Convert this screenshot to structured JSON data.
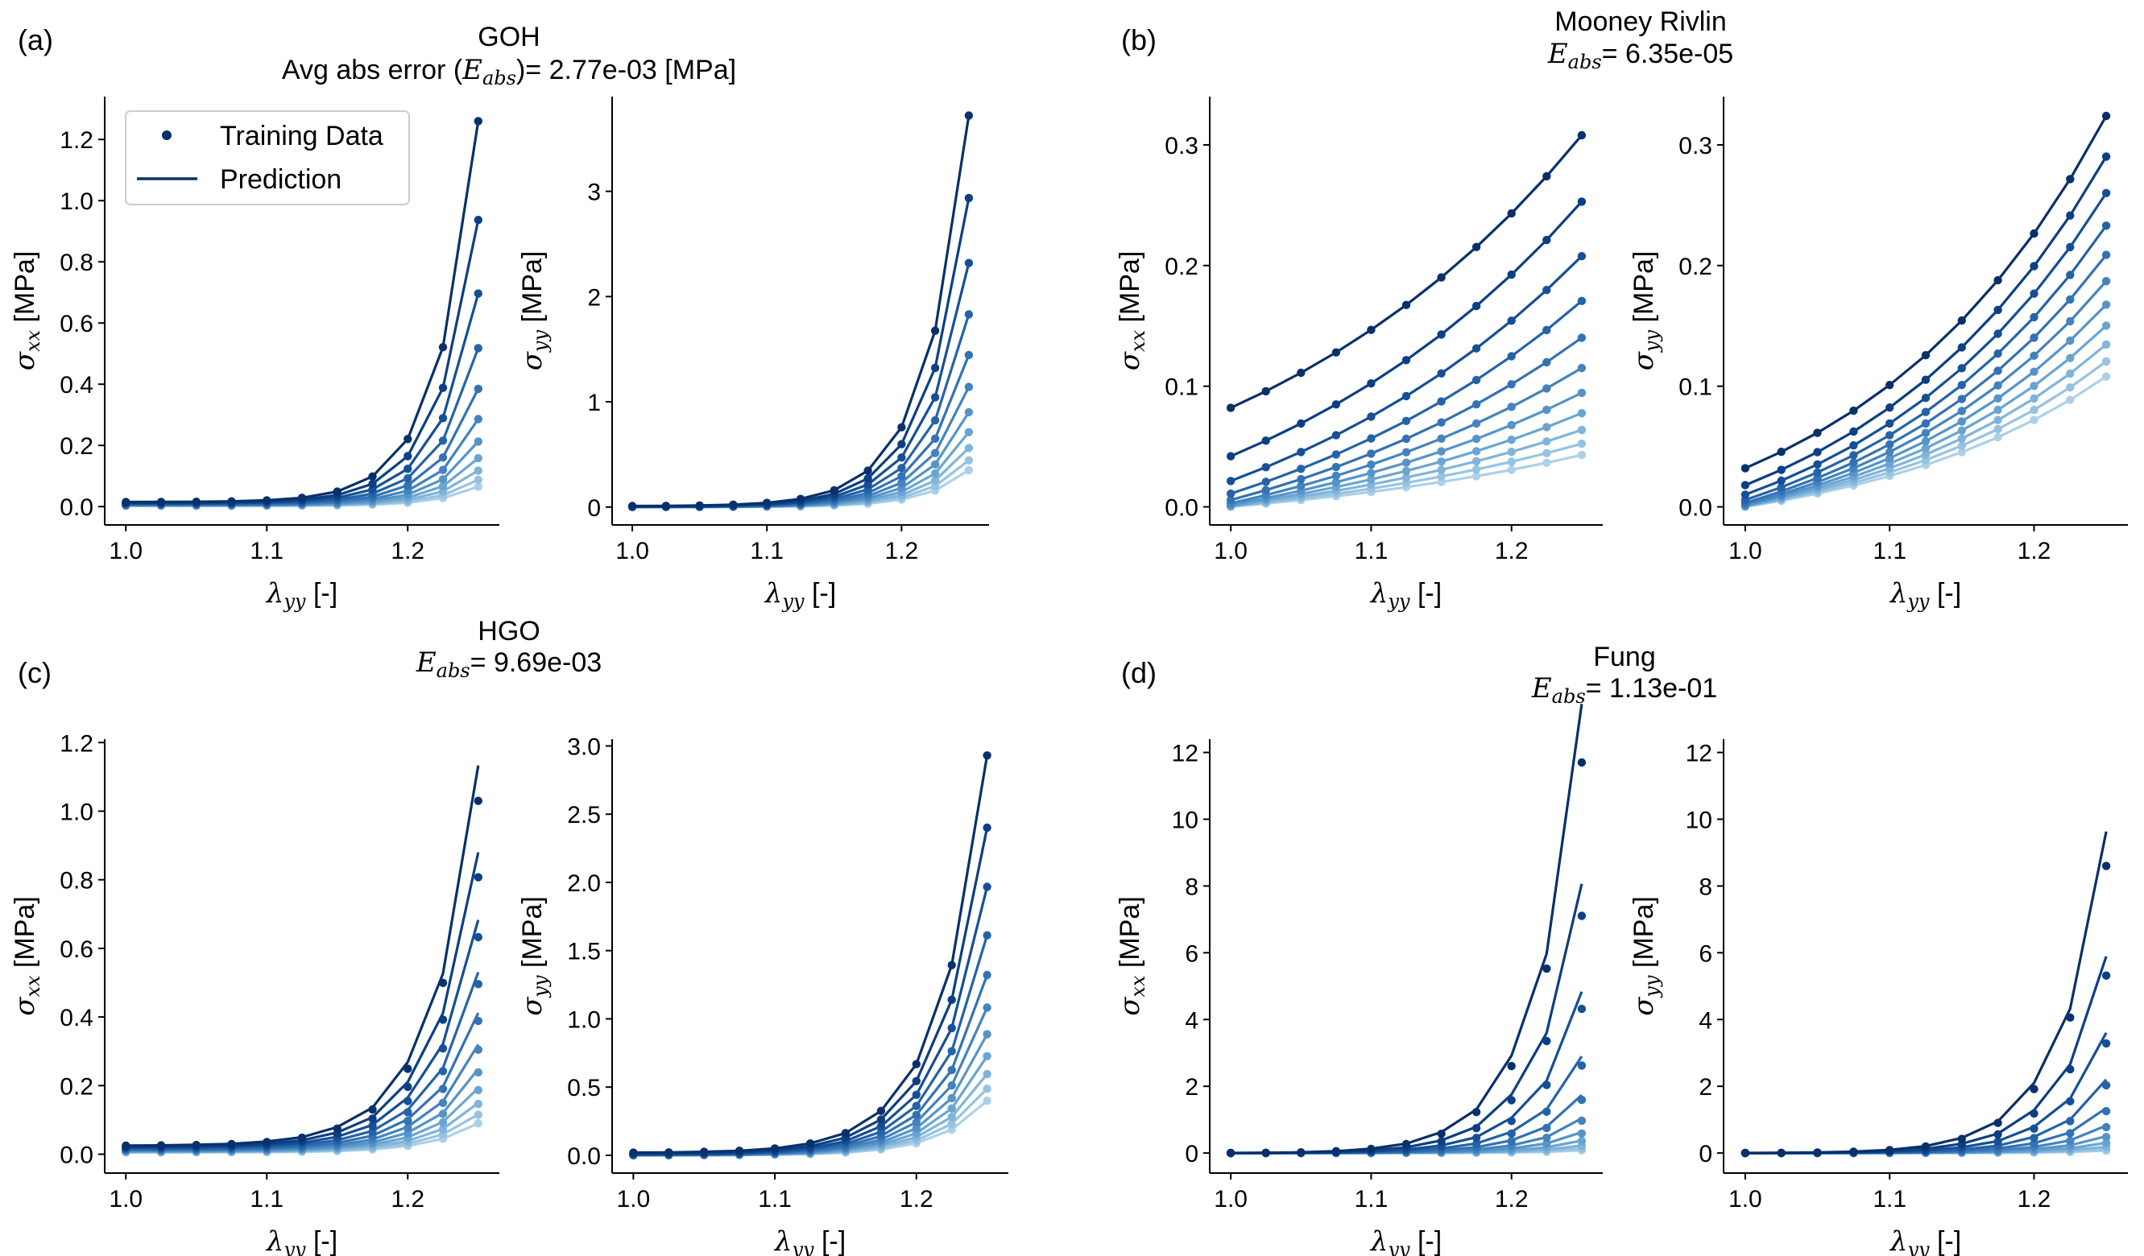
{
  "figure": {
    "panels": [
      {
        "label": "(a)",
        "title_line1": "GOH",
        "title_prefix": "Avg abs error (",
        "title_symbol": "E",
        "title_symbol_sub": "abs",
        "title_suffix": ")= 2.77e-03 [MPa]"
      },
      {
        "label": "(b)",
        "title_line1": "Mooney Rivlin",
        "title_prefix": "",
        "title_symbol": "E",
        "title_symbol_sub": "abs",
        "title_suffix": "= 6.35e-05"
      },
      {
        "label": "(c)",
        "title_line1": "HGO",
        "title_prefix": "",
        "title_symbol": "E",
        "title_symbol_sub": "abs",
        "title_suffix": "= 9.69e-03"
      },
      {
        "label": "(d)",
        "title_line1": "Fung",
        "title_prefix": "",
        "title_symbol": "E",
        "title_symbol_sub": "abs",
        "title_suffix": "= 1.13e-01"
      }
    ],
    "legend": {
      "training": "Training Data",
      "prediction": "Prediction"
    },
    "xlabel": {
      "symbol": "λ",
      "sub": "yy",
      "unit": " [-]"
    },
    "ylabel_xx": {
      "symbol": "σ",
      "sub": "xx",
      "unit": " [MPa]"
    },
    "ylabel_yy": {
      "symbol": "σ",
      "sub": "yy",
      "unit": " [MPa]"
    },
    "colors": [
      "#08306b",
      "#0c3f83",
      "#164f96",
      "#2563a8",
      "#3372b4",
      "#4383be",
      "#5694c8",
      "#6aa5d2",
      "#80b4da",
      "#96c3e2",
      "#acd0e8"
    ]
  },
  "chart_data": [
    {
      "id": "a_xx",
      "type": "line",
      "panel": "(a)",
      "ylabel": "σ_xx [MPa]",
      "xlabel": "λ_yy [-]",
      "xlim": [
        0.985,
        1.265
      ],
      "ylim": [
        -0.06,
        1.34
      ],
      "xticks": [
        1.0,
        1.1,
        1.2
      ],
      "yticks": [
        0.0,
        0.2,
        0.4,
        0.6,
        0.8,
        1.0,
        1.2
      ],
      "ytick_labels": [
        "0.0",
        "0.2",
        "0.4",
        "0.6",
        "0.8",
        "1.0",
        "1.2"
      ],
      "n_series": 11,
      "top": 1.26,
      "bottom": 0.065,
      "base": 0.015,
      "base_bottom": 0.002,
      "k": 36,
      "pred_bias": 0
    },
    {
      "id": "a_yy",
      "type": "line",
      "panel": "(a)",
      "ylabel": "σ_yy [MPa]",
      "xlabel": "λ_yy [-]",
      "xlim": [
        0.985,
        1.265
      ],
      "ylim": [
        -0.17,
        3.9
      ],
      "xticks": [
        1.0,
        1.1,
        1.2
      ],
      "yticks": [
        0,
        1,
        2,
        3
      ],
      "ytick_labels": [
        "0",
        "1",
        "2",
        "3"
      ],
      "n_series": 11,
      "top": 3.72,
      "bottom": 0.35,
      "base": 0.01,
      "base_bottom": 0.0,
      "k": 32,
      "pred_bias": 0
    },
    {
      "id": "b_xx",
      "type": "line",
      "panel": "(b)",
      "ylabel": "σ_xx [MPa]",
      "xlabel": "λ_yy [-]",
      "xlim": [
        0.985,
        1.265
      ],
      "ylim": [
        -0.015,
        0.34
      ],
      "xticks": [
        1.0,
        1.1,
        1.2
      ],
      "yticks": [
        0.0,
        0.1,
        0.2,
        0.3
      ],
      "ytick_labels": [
        "0.0",
        "0.1",
        "0.2",
        "0.3"
      ],
      "n_series": 11,
      "top": 0.308,
      "bottom": 0.043,
      "base": 0.082,
      "base_bottom": 0.0,
      "k": 4,
      "pred_bias": 0
    },
    {
      "id": "b_yy",
      "type": "line",
      "panel": "(b)",
      "ylabel": "σ_yy [MPa]",
      "xlabel": "λ_yy [-]",
      "xlim": [
        0.985,
        1.265
      ],
      "ylim": [
        -0.015,
        0.34
      ],
      "xticks": [
        1.0,
        1.1,
        1.2
      ],
      "yticks": [
        0.0,
        0.1,
        0.2,
        0.3
      ],
      "ytick_labels": [
        "0.0",
        "0.1",
        "0.2",
        "0.3"
      ],
      "n_series": 11,
      "top": 0.324,
      "bottom": 0.108,
      "base": 0.032,
      "base_bottom": 0.0,
      "k": 6,
      "pred_bias": 0
    },
    {
      "id": "c_xx",
      "type": "line",
      "panel": "(c)",
      "ylabel": "σ_xx [MPa]",
      "xlabel": "λ_yy [-]",
      "xlim": [
        0.985,
        1.265
      ],
      "ylim": [
        -0.055,
        1.21
      ],
      "xticks": [
        1.0,
        1.1,
        1.2
      ],
      "yticks": [
        0.0,
        0.2,
        0.4,
        0.6,
        0.8,
        1.0,
        1.2
      ],
      "ytick_labels": [
        "0.0",
        "0.2",
        "0.4",
        "0.6",
        "0.8",
        "1.0",
        "1.2"
      ],
      "n_series": 11,
      "top": 1.03,
      "bottom": 0.09,
      "base": 0.025,
      "base_bottom": 0.005,
      "k": 30,
      "pred_bias": 0.1
    },
    {
      "id": "c_yy",
      "type": "line",
      "panel": "(c)",
      "ylabel": "σ_yy [MPa]",
      "xlabel": "λ_yy [-]",
      "xlim": [
        0.985,
        1.265
      ],
      "ylim": [
        -0.13,
        3.05
      ],
      "xticks": [
        1.0,
        1.1,
        1.2
      ],
      "yticks": [
        0.0,
        0.5,
        1.0,
        1.5,
        2.0,
        2.5,
        3.0
      ],
      "ytick_labels": [
        "0.0",
        "0.5",
        "1.0",
        "1.5",
        "2.0",
        "2.5",
        "3.0"
      ],
      "n_series": 11,
      "top": 2.93,
      "bottom": 0.4,
      "base": 0.02,
      "base_bottom": 0.0,
      "k": 30,
      "pred_bias": 0
    },
    {
      "id": "d_xx",
      "type": "line",
      "panel": "(d)",
      "ylabel": "σ_xx [MPa]",
      "xlabel": "λ_yy [-]",
      "xlim": [
        0.985,
        1.265
      ],
      "ylim": [
        -0.6,
        12.4
      ],
      "xticks": [
        1.0,
        1.1,
        1.2
      ],
      "yticks": [
        0,
        2,
        4,
        6,
        8,
        10,
        12
      ],
      "ytick_labels": [
        "0",
        "2",
        "4",
        "6",
        "8",
        "10",
        "12"
      ],
      "n_series": 11,
      "top": 11.7,
      "bottom": 0.08,
      "base": 0.0,
      "base_bottom": 0.0,
      "k": 30,
      "pred_bias": 0.15
    },
    {
      "id": "d_yy",
      "type": "line",
      "panel": "(d)",
      "ylabel": "σ_yy [MPa]",
      "xlabel": "λ_yy [-]",
      "xlim": [
        0.985,
        1.265
      ],
      "ylim": [
        -0.6,
        12.4
      ],
      "xticks": [
        1.0,
        1.1,
        1.2
      ],
      "yticks": [
        0,
        2,
        4,
        6,
        8,
        10,
        12
      ],
      "ytick_labels": [
        "0",
        "2",
        "4",
        "6",
        "8",
        "10",
        "12"
      ],
      "n_series": 11,
      "top": 8.6,
      "bottom": 0.07,
      "base": 0.0,
      "base_bottom": 0.0,
      "k": 30,
      "pred_bias": 0.12
    }
  ]
}
